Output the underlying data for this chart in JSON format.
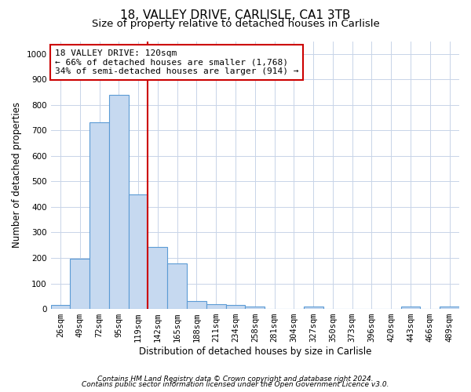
{
  "title1": "18, VALLEY DRIVE, CARLISLE, CA1 3TB",
  "title2": "Size of property relative to detached houses in Carlisle",
  "xlabel": "Distribution of detached houses by size in Carlisle",
  "ylabel": "Number of detached properties",
  "bar_labels": [
    "26sqm",
    "49sqm",
    "72sqm",
    "95sqm",
    "119sqm",
    "142sqm",
    "165sqm",
    "188sqm",
    "211sqm",
    "234sqm",
    "258sqm",
    "281sqm",
    "304sqm",
    "327sqm",
    "350sqm",
    "373sqm",
    "396sqm",
    "420sqm",
    "443sqm",
    "466sqm",
    "489sqm"
  ],
  "bar_values": [
    15,
    197,
    733,
    840,
    450,
    242,
    180,
    32,
    20,
    15,
    10,
    0,
    0,
    8,
    0,
    0,
    0,
    0,
    8,
    0,
    8
  ],
  "bar_color": "#c6d9f0",
  "bar_edge_color": "#5b9bd5",
  "vline_x_idx": 4,
  "vline_color": "#cc0000",
  "ylim": [
    0,
    1050
  ],
  "yticks": [
    0,
    100,
    200,
    300,
    400,
    500,
    600,
    700,
    800,
    900,
    1000
  ],
  "annotation_line1": "18 VALLEY DRIVE: 120sqm",
  "annotation_line2": "← 66% of detached houses are smaller (1,768)",
  "annotation_line3": "34% of semi-detached houses are larger (914) →",
  "annotation_box_color": "#ffffff",
  "annotation_box_edge": "#cc0000",
  "footer1": "Contains HM Land Registry data © Crown copyright and database right 2024.",
  "footer2": "Contains public sector information licensed under the Open Government Licence v3.0.",
  "bg_color": "#ffffff",
  "grid_color": "#c8d4e8",
  "title1_fontsize": 11,
  "title2_fontsize": 9.5,
  "ylabel_fontsize": 8.5,
  "xlabel_fontsize": 8.5,
  "tick_fontsize": 7.5,
  "annot_fontsize": 8,
  "footer_fontsize": 6.5
}
